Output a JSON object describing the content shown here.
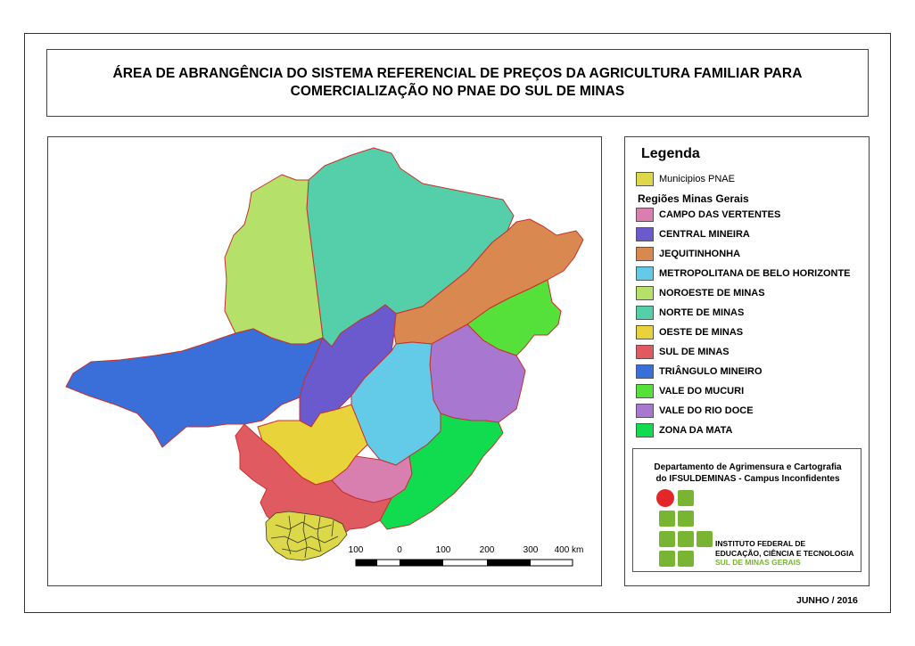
{
  "title": {
    "line1": "ÁREA DE ABRANGÊNCIA DO SISTEMA REFERENCIAL DE PREÇOS DA AGRICULTURA FAMILIAR PARA",
    "line2": "COMERCIALIZAÇÃO NO PNAE DO SUL DE MINAS"
  },
  "legend": {
    "title": "Legenda",
    "pnae": {
      "label": "Municipios PNAE",
      "color": "#dcd84a"
    },
    "subtitle": "Regiões Minas Gerais",
    "regions": [
      {
        "label": "CAMPO DAS VERTENTES",
        "color": "#d97fb0"
      },
      {
        "label": "CENTRAL MINEIRA",
        "color": "#6a5acd"
      },
      {
        "label": "JEQUITINHONHA",
        "color": "#d98850"
      },
      {
        "label": "METROPOLITANA DE BELO HORIZONTE",
        "color": "#63cbe8"
      },
      {
        "label": "NOROESTE DE MINAS",
        "color": "#b5e06a"
      },
      {
        "label": "NORTE DE MINAS",
        "color": "#55cfaa"
      },
      {
        "label": "OESTE DE MINAS",
        "color": "#e8d33a"
      },
      {
        "label": "SUL DE MINAS",
        "color": "#e05a62"
      },
      {
        "label": "TRIÂNGULO MINEIRO",
        "color": "#3a6ed8"
      },
      {
        "label": "VALE DO MUCURI",
        "color": "#55e03a"
      },
      {
        "label": "VALE DO RIO DOCE",
        "color": "#a877d0"
      },
      {
        "label": "ZONA DA MATA",
        "color": "#11dc50"
      }
    ]
  },
  "scale_bar": {
    "labels": [
      "100",
      "0",
      "100",
      "200",
      "300",
      "400 km"
    ]
  },
  "institution": {
    "dept_line1": "Departamento de Agrimensura e Cartografia",
    "dept_line2": "do IFSULDEMINAS - Campus Inconfidentes",
    "name_line1": "INSTITUTO FEDERAL DE",
    "name_line2": "EDUCAÇÃO, CIÊNCIA E TECNOLOGIA",
    "campus": "SUL DE MINAS GERAIS",
    "logo_icon": "if-logo-icon",
    "logo_colors": {
      "dot": "#e3262a",
      "squares": "#7ab433"
    }
  },
  "date": "JUNHO / 2016"
}
